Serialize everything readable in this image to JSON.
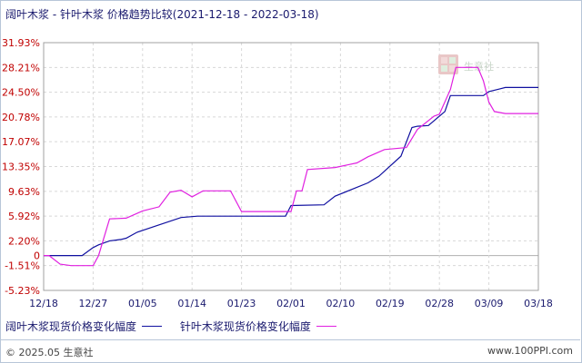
{
  "chart_data": {
    "type": "line",
    "title": "阔叶木浆 - 针叶木浆 价格趋势比较(2021-12-18 - 2022-03-18)",
    "y_ticks": [
      "31.93%",
      "28.21%",
      "24.50%",
      "20.78%",
      "17.07%",
      "13.35%",
      "9.63%",
      "5.92%",
      "2.20%",
      "0",
      "-1.51%",
      "-5.23%"
    ],
    "y_tick_values": [
      31.93,
      28.21,
      24.5,
      20.78,
      17.07,
      13.35,
      9.63,
      5.92,
      2.2,
      0,
      -1.51,
      -5.23
    ],
    "ylim": [
      -5.23,
      31.93
    ],
    "x_ticks": [
      "12/18",
      "12/27",
      "01/05",
      "01/14",
      "01/23",
      "02/01",
      "02/10",
      "02/19",
      "02/28",
      "03/09",
      "03/18"
    ],
    "x_days": 90,
    "grid": true,
    "legend_position": "bottom-left",
    "series": [
      {
        "name": "阔叶木浆现货价格变化幅度",
        "color": "#1010a0",
        "points": [
          [
            0,
            0
          ],
          [
            7,
            0
          ],
          [
            9,
            1.2
          ],
          [
            10,
            1.6
          ],
          [
            12,
            2.2
          ],
          [
            14,
            2.4
          ],
          [
            15,
            2.6
          ],
          [
            17,
            3.5
          ],
          [
            21,
            4.6
          ],
          [
            25,
            5.7
          ],
          [
            28,
            5.9
          ],
          [
            44,
            5.9
          ],
          [
            45,
            7.5
          ],
          [
            51,
            7.6
          ],
          [
            53,
            8.9
          ],
          [
            59,
            10.9
          ],
          [
            61,
            11.9
          ],
          [
            65,
            14.9
          ],
          [
            67,
            19.2
          ],
          [
            68,
            19.4
          ],
          [
            70,
            19.5
          ],
          [
            73,
            21.6
          ],
          [
            74,
            24.0
          ],
          [
            80,
            24.0
          ],
          [
            81,
            24.6
          ],
          [
            83,
            25.0
          ],
          [
            84,
            25.2
          ],
          [
            90,
            25.2
          ]
        ]
      },
      {
        "name": "针叶木浆现货价格变化幅度",
        "color": "#e020e0",
        "points": [
          [
            0,
            0
          ],
          [
            1,
            0
          ],
          [
            3,
            -1.3
          ],
          [
            5,
            -1.51
          ],
          [
            9,
            -1.51
          ],
          [
            10,
            0
          ],
          [
            12,
            5.5
          ],
          [
            15,
            5.6
          ],
          [
            18,
            6.7
          ],
          [
            21,
            7.3
          ],
          [
            23,
            9.5
          ],
          [
            25,
            9.8
          ],
          [
            27,
            8.8
          ],
          [
            29,
            9.7
          ],
          [
            34,
            9.7
          ],
          [
            36,
            6.6
          ],
          [
            45,
            6.6
          ],
          [
            46,
            9.7
          ],
          [
            47,
            9.7
          ],
          [
            48,
            12.9
          ],
          [
            53,
            13.2
          ],
          [
            57,
            13.9
          ],
          [
            59,
            14.8
          ],
          [
            62,
            15.9
          ],
          [
            66,
            16.2
          ],
          [
            68,
            18.9
          ],
          [
            71,
            20.9
          ],
          [
            72,
            21.2
          ],
          [
            74,
            24.9
          ],
          [
            75,
            28.21
          ],
          [
            79,
            28.21
          ],
          [
            80,
            26.2
          ],
          [
            81,
            23.0
          ],
          [
            82,
            21.6
          ],
          [
            84,
            21.3
          ],
          [
            90,
            21.3
          ]
        ]
      }
    ]
  },
  "watermark": {
    "text": "生意社"
  },
  "legend": {
    "items": [
      {
        "label": "阔叶木浆现货价格变化幅度",
        "color": "#1010a0"
      },
      {
        "label": "针叶木浆现货价格变化幅度",
        "color": "#e020e0"
      }
    ]
  },
  "footer": {
    "left": "© 2025.05 生意社",
    "right": "www.100PPI.com"
  }
}
